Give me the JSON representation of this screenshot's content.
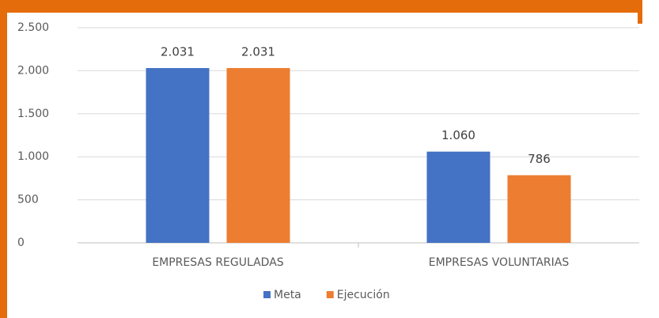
{
  "chart_data": {
    "type": "bar",
    "categories": [
      "EMPRESAS REGULADAS",
      "EMPRESAS VOLUNTARIAS"
    ],
    "series": [
      {
        "name": "Meta",
        "color": "#4472c4",
        "values": [
          2031,
          1060
        ],
        "value_labels": [
          "2.031",
          "1.060"
        ]
      },
      {
        "name": "Ejecución",
        "color": "#ed7d31",
        "values": [
          2031,
          786
        ],
        "value_labels": [
          "2.031",
          "786"
        ]
      }
    ],
    "ylim": [
      0,
      2500
    ],
    "yticks": [
      0,
      500,
      {
        "value": 1000,
        "label": "1.000"
      },
      {
        "value": 1500,
        "label": "1.500"
      },
      {
        "value": 2000,
        "label": "2.000"
      },
      {
        "value": 2500,
        "label": "2.500"
      }
    ],
    "grid": true,
    "legend": "bottom"
  }
}
